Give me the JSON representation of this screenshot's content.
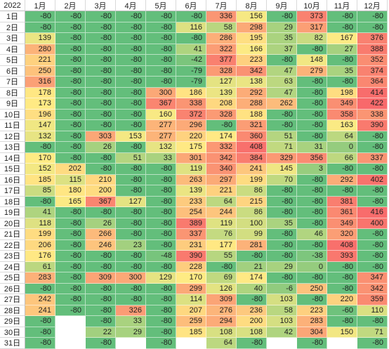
{
  "chart_data": {
    "type": "heatmap",
    "title": "",
    "year_label": "2022",
    "columns": [
      "1月",
      "2月",
      "3月",
      "4月",
      "5月",
      "6月",
      "7月",
      "8月",
      "9月",
      "10月",
      "11月",
      "12月"
    ],
    "rows": [
      "1日",
      "2日",
      "3日",
      "4日",
      "5日",
      "6日",
      "7日",
      "8日",
      "9日",
      "10日",
      "11日",
      "12日",
      "13日",
      "14日",
      "15日",
      "16日",
      "17日",
      "18日",
      "19日",
      "20日",
      "21日",
      "22日",
      "23日",
      "24日",
      "25日",
      "26日",
      "27日",
      "28日",
      "29日",
      "30日",
      "31日"
    ],
    "values": [
      [
        -80,
        -80,
        -80,
        -80,
        -80,
        -80,
        336,
        156,
        -80,
        373,
        -80,
        -80
      ],
      [
        -80,
        -80,
        -80,
        -80,
        -80,
        116,
        58,
        298,
        29,
        317,
        -80,
        -80
      ],
      [
        139,
        -80,
        -80,
        -80,
        -80,
        -80,
        286,
        195,
        35,
        82,
        167,
        376
      ],
      [
        280,
        -80,
        -80,
        -80,
        -80,
        41,
        322,
        166,
        37,
        -80,
        27,
        388
      ],
      [
        221,
        -80,
        -80,
        -80,
        -80,
        -42,
        377,
        223,
        -80,
        148,
        -80,
        352
      ],
      [
        250,
        -80,
        -80,
        -80,
        -80,
        -79,
        328,
        342,
        47,
        279,
        35,
        374
      ],
      [
        316,
        -80,
        -80,
        -80,
        -80,
        -79,
        127,
        138,
        63,
        -80,
        -80,
        364
      ],
      [
        178,
        -80,
        -80,
        -80,
        300,
        186,
        139,
        292,
        47,
        -80,
        198,
        414
      ],
      [
        173,
        -80,
        -80,
        -80,
        367,
        338,
        208,
        288,
        262,
        -80,
        349,
        422
      ],
      [
        196,
        -80,
        -80,
        -80,
        160,
        372,
        328,
        188,
        -80,
        -80,
        358,
        338
      ],
      [
        147,
        -80,
        -80,
        -80,
        277,
        296,
        -80,
        321,
        -80,
        -80,
        163,
        390
      ],
      [
        132,
        -80,
        303,
        153,
        277,
        220,
        174,
        360,
        51,
        -80,
        64,
        -80
      ],
      [
        -80,
        -80,
        26,
        -80,
        132,
        175,
        332,
        408,
        71,
        31,
        0,
        -80
      ],
      [
        170,
        -80,
        -80,
        51,
        33,
        301,
        342,
        384,
        329,
        356,
        66,
        337
      ],
      [
        152,
        202,
        -80,
        -80,
        -80,
        119,
        340,
        241,
        145,
        3,
        -80,
        -80
      ],
      [
        185,
        115,
        210,
        -80,
        -80,
        263,
        297,
        199,
        70,
        -80,
        292,
        402
      ],
      [
        85,
        180,
        200,
        -80,
        -80,
        139,
        221,
        86,
        -80,
        -80,
        -80,
        -80
      ],
      [
        -80,
        165,
        367,
        127,
        -80,
        233,
        64,
        215,
        -80,
        -80,
        381,
        -80
      ],
      [
        41,
        -80,
        -80,
        -80,
        -80,
        254,
        244,
        86,
        -80,
        -80,
        361,
        416
      ],
      [
        118,
        -80,
        26,
        -80,
        -80,
        389,
        119,
        100,
        35,
        -80,
        349,
        400
      ],
      [
        199,
        -80,
        266,
        -80,
        -80,
        337,
        76,
        99,
        -80,
        46,
        320,
        -80
      ],
      [
        206,
        -80,
        246,
        23,
        -80,
        231,
        177,
        281,
        -80,
        -80,
        408,
        -80
      ],
      [
        176,
        -80,
        -80,
        -80,
        -48,
        390,
        55,
        -80,
        -80,
        -38,
        393,
        -80
      ],
      [
        61,
        -80,
        -80,
        -80,
        -80,
        228,
        -80,
        21,
        29,
        0,
        -80,
        -80
      ],
      [
        283,
        -80,
        309,
        300,
        129,
        170,
        69,
        174,
        -80,
        -80,
        -80,
        347
      ],
      [
        -80,
        -80,
        -80,
        -80,
        -80,
        299,
        126,
        40,
        -6,
        250,
        -80,
        342
      ],
      [
        242,
        -80,
        -80,
        -80,
        -80,
        114,
        309,
        -80,
        103,
        -80,
        220,
        359
      ],
      [
        241,
        -80,
        -80,
        326,
        -80,
        207,
        276,
        236,
        58,
        223,
        -60,
        110
      ],
      [
        -80,
        null,
        -80,
        33,
        -80,
        259,
        294,
        200,
        103,
        283,
        -80,
        -80
      ],
      [
        -80,
        null,
        22,
        29,
        -80,
        185,
        108,
        108,
        42,
        304,
        150,
        71
      ],
      [
        -80,
        null,
        -80,
        null,
        -80,
        null,
        64,
        -80,
        null,
        -80,
        null,
        -80
      ]
    ],
    "value_range": [
      -80,
      422
    ],
    "color_scale": [
      "#63BE7B",
      "#FFEB84",
      "#F8696B"
    ]
  }
}
